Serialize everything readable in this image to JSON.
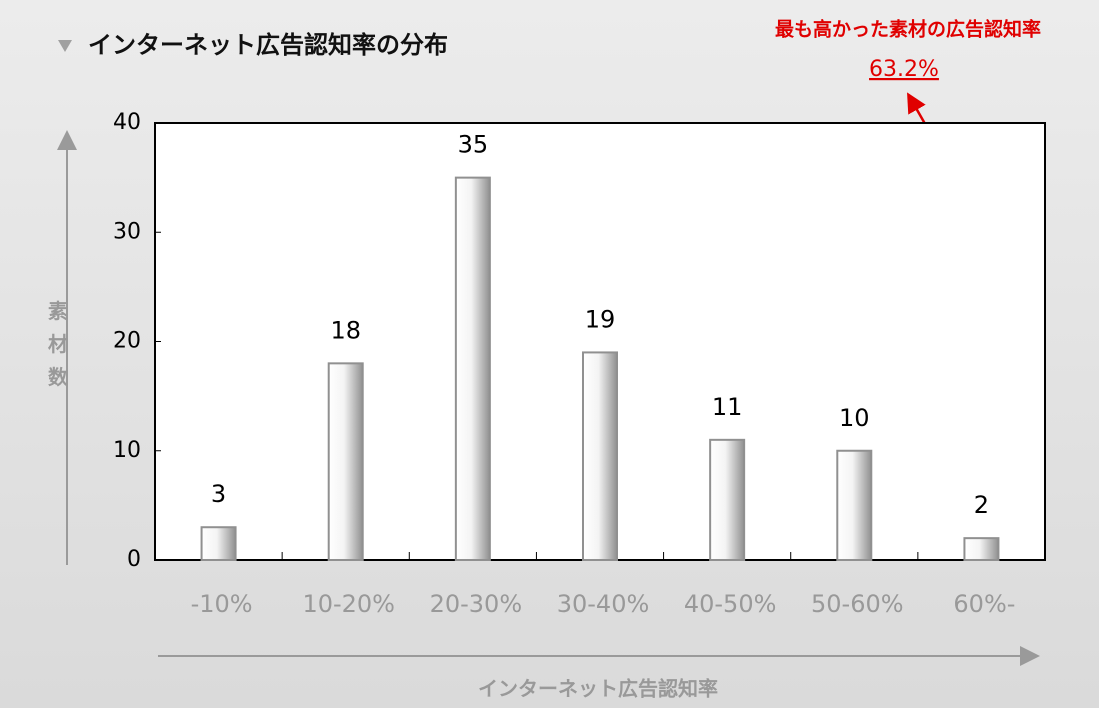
{
  "chart_data": {
    "type": "bar",
    "title": "インターネット広告認知率の分布",
    "annotation": [
      "最も高かった素材の広告認知率",
      "63.2%"
    ],
    "x_label": "インターネット広告認知率",
    "y_label": "素材数",
    "categories": [
      "-10%",
      "10-20%",
      "20-30%",
      "30-40%",
      "40-50%",
      "50-60%",
      "60%-"
    ],
    "values": [
      3,
      18,
      35,
      19,
      11,
      10,
      2
    ],
    "color": "#909090",
    "ylim": [
      0,
      40
    ],
    "yticks": [
      0,
      10,
      20,
      30,
      40
    ],
    "grid": false
  }
}
